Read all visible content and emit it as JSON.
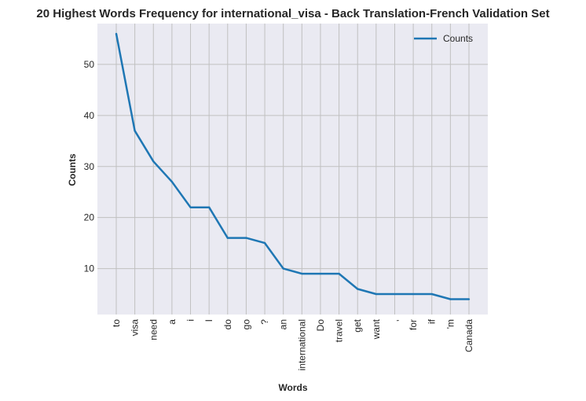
{
  "chart_data": {
    "type": "line",
    "title": "20 Highest Words Frequency for international_visa - Back Translation-French Validation Set",
    "xlabel": "Words",
    "ylabel": "Counts",
    "categories": [
      "to",
      "visa",
      "need",
      "a",
      "i",
      "I",
      "do",
      "go",
      "?",
      "an",
      "international",
      "Do",
      "travel",
      "get",
      "want",
      ",",
      "for",
      "if",
      "'m",
      "Canada"
    ],
    "series": [
      {
        "name": "Counts",
        "values": [
          56,
          37,
          31,
          27,
          22,
          22,
          16,
          16,
          15,
          10,
          9,
          9,
          9,
          6,
          5,
          5,
          5,
          5,
          4,
          4
        ],
        "color": "#1f77b4"
      }
    ],
    "yticks": [
      10,
      20,
      30,
      40,
      50
    ],
    "ylim": [
      1,
      58
    ],
    "grid": true,
    "legend": "top-right",
    "background": "#eaeaf2"
  }
}
